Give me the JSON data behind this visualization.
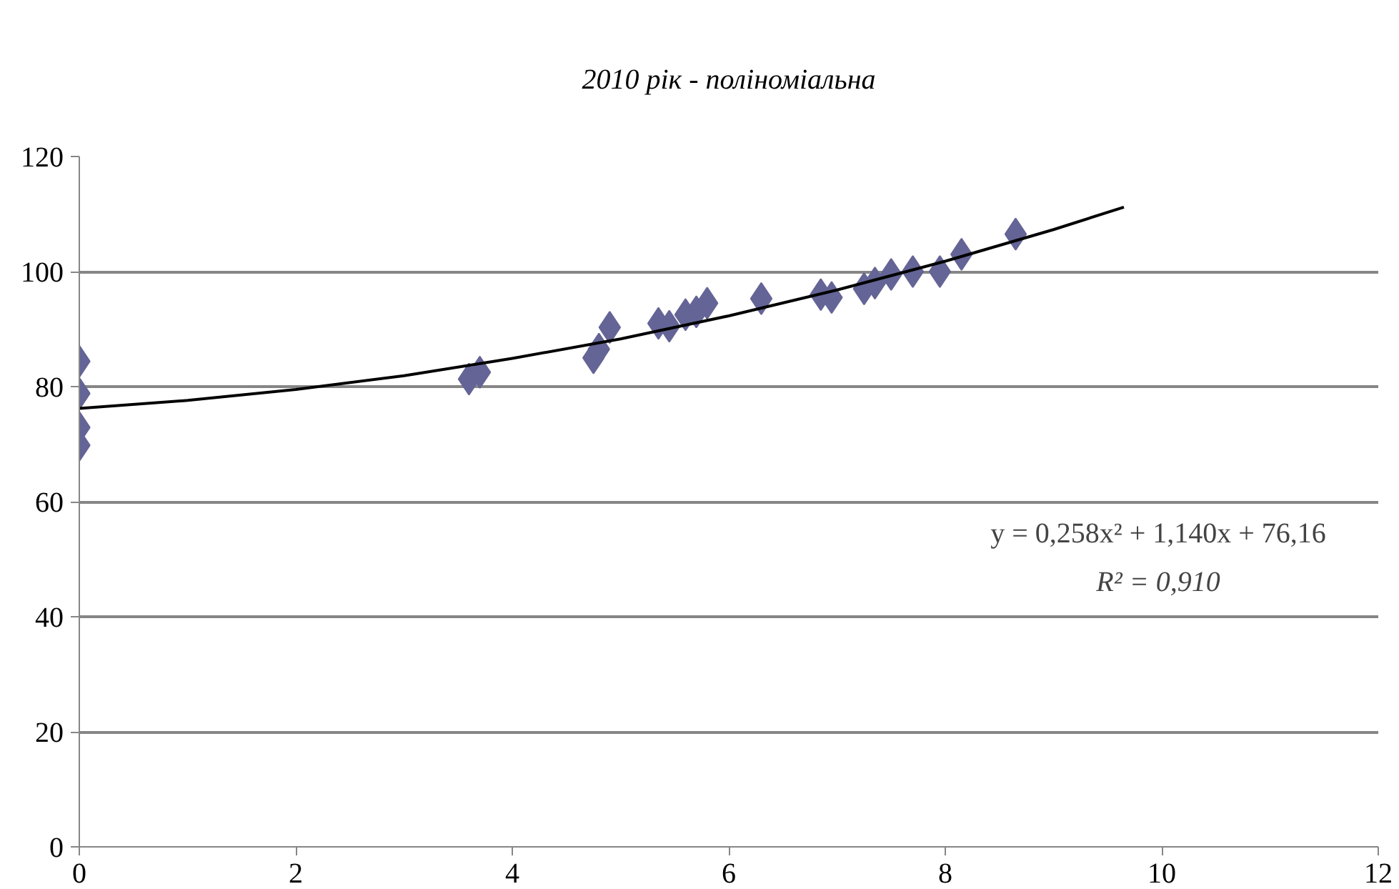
{
  "chart_data": {
    "type": "scatter",
    "title": "2010 рік - поліноміальна",
    "xlim": [
      0,
      12
    ],
    "xticks": [
      0,
      2,
      4,
      6,
      8,
      10,
      12
    ],
    "ylim": [
      0,
      120
    ],
    "yticks": [
      0,
      20,
      40,
      60,
      80,
      100,
      120
    ],
    "grid": "y",
    "marker": "diamond",
    "series": [
      {
        "color": "#646496",
        "x": [
          0,
          0,
          0,
          0,
          3.6,
          3.7,
          4.75,
          4.8,
          4.9,
          5.35,
          5.45,
          5.6,
          5.7,
          5.8,
          6.3,
          6.85,
          6.95,
          7.25,
          7.35,
          7.5,
          7.7,
          7.95,
          8.15,
          8.65
        ],
        "values": [
          84.4,
          78.8,
          72.9,
          69.8,
          81.3,
          82.5,
          85,
          86.5,
          90.3,
          91,
          90.5,
          92.5,
          93,
          94.5,
          95.3,
          96,
          95.5,
          97,
          98,
          99.5,
          100,
          100,
          103,
          106.5
        ]
      },
      {
        "type": "line",
        "color": "#000000",
        "line_style": "solid",
        "marker": "none",
        "x": [
          0,
          1,
          2,
          3,
          4,
          5,
          6,
          7,
          8,
          9,
          9.65
        ],
        "values": [
          76.2,
          77.6,
          79.5,
          81.9,
          84.9,
          88.3,
          92.3,
          96.8,
          101.8,
          107.3,
          111.2
        ]
      }
    ],
    "annotations": [
      "y = 0,258x² + 1,140x + 76,16",
      "R² = 0,910"
    ]
  }
}
